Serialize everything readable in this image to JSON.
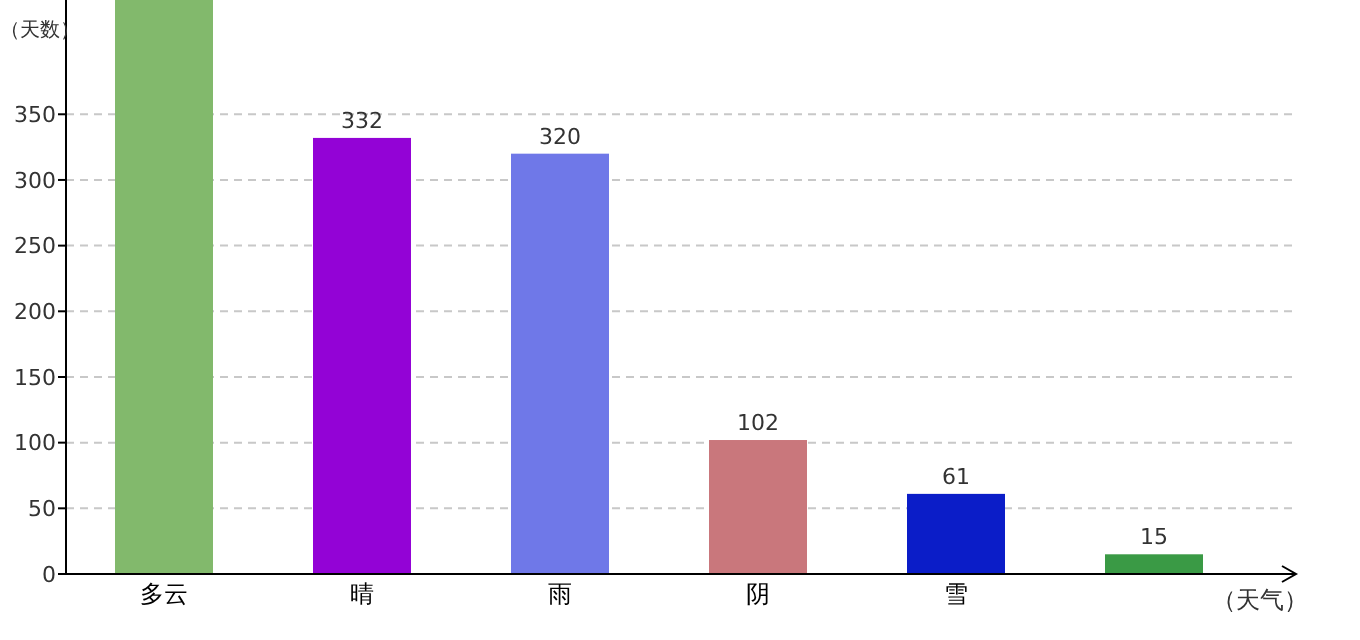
{
  "chart_data": {
    "type": "bar",
    "ylabel": "（天数）",
    "xlabel": "（天气）",
    "categories": [
      "多云",
      "晴",
      "雨",
      "阴",
      "雪",
      null
    ],
    "values": [
      437,
      332,
      320,
      102,
      61,
      15
    ],
    "colors": [
      "#82b96c",
      "#9303d6",
      "#6f78e8",
      "#c9777c",
      "#0b1dc8",
      "#3a9a45"
    ],
    "value_labels": [
      null,
      "332",
      "320",
      "102",
      "61",
      "15"
    ],
    "ylim": [
      0,
      437
    ],
    "yticks": [
      0,
      50,
      100,
      150,
      200,
      250,
      300,
      350
    ],
    "grid": "y"
  }
}
